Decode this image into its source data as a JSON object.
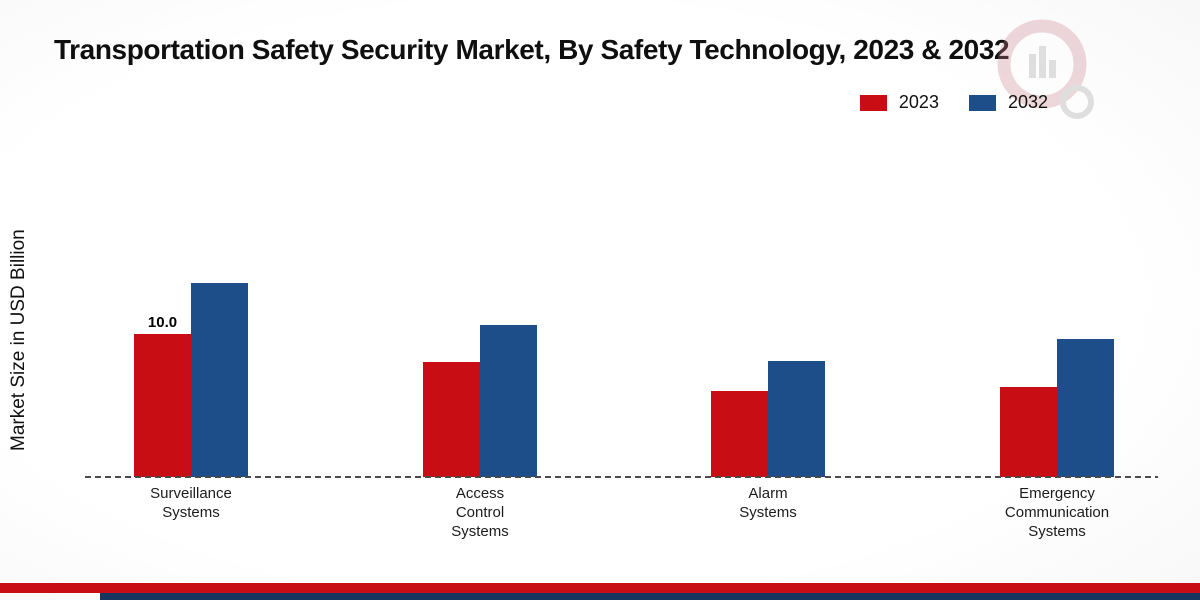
{
  "header": {
    "title": "Transportation Safety Security Market, By Safety Technology, 2023 & 2032"
  },
  "y_axis_label": "Market Size in USD Billion",
  "legend": {
    "items": [
      {
        "label": "2023",
        "color": "#c90d15"
      },
      {
        "label": "2032",
        "color": "#1d4e89"
      }
    ]
  },
  "chart_data": {
    "type": "bar",
    "title": "Transportation Safety Security Market, By Safety Technology, 2023 & 2032",
    "xlabel": "",
    "ylabel": "Market Size in USD Billion",
    "categories": [
      "Surveillance Systems",
      "Access Control Systems",
      "Alarm Systems",
      "Emergency Communication Systems"
    ],
    "categories_lines": [
      [
        "Surveillance",
        "Systems"
      ],
      [
        "Access",
        "Control",
        "Systems"
      ],
      [
        "Alarm",
        "Systems"
      ],
      [
        "Emergency",
        "Communication",
        "Systems"
      ]
    ],
    "series": [
      {
        "name": "2023",
        "color": "#c90d15",
        "values": [
          10.0,
          8.0,
          6.0,
          6.3
        ]
      },
      {
        "name": "2032",
        "color": "#1d4e89",
        "values": [
          13.5,
          10.6,
          8.1,
          9.6
        ]
      }
    ],
    "ylim": [
      0,
      15
    ],
    "grid": false,
    "legend_position": "top-right",
    "data_labels": [
      {
        "series": "2023",
        "category_index": 0,
        "text": "10.0"
      }
    ]
  },
  "colors": {
    "baseline": "#4a4a4a",
    "footer_red": "#c90d15",
    "footer_navy": "#17355e",
    "watermark_pink": "#c87f8d",
    "watermark_gray": "#9a9a9a"
  }
}
